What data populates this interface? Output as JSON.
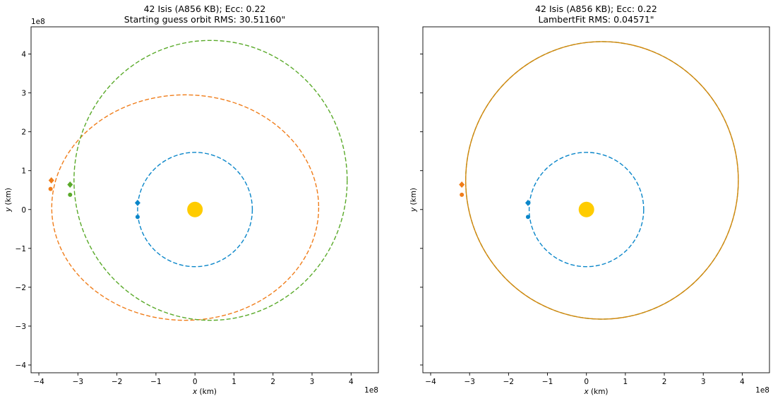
{
  "chart_data": [
    {
      "type": "scatter",
      "title_line1": "42 Isis (A856 KB); Ecc: 0.22",
      "title_line2": "Starting guess orbit RMS: 30.51160\"",
      "xlabel_var": "x",
      "xlabel_unit": " (km)",
      "ylabel_var": "y",
      "ylabel_unit": " (km)",
      "x_multiplier": "1e8",
      "y_multiplier": "1e8",
      "xlim": [
        -4.2,
        4.7
      ],
      "ylim": [
        -4.2,
        4.7
      ],
      "xticks": [
        -4,
        -3,
        -2,
        -1,
        0,
        1,
        2,
        3,
        4
      ],
      "yticks": [
        -4,
        -3,
        -2,
        -1,
        0,
        1,
        2,
        3,
        4
      ],
      "xtick_labels": [
        "−4",
        "−3",
        "−2",
        "−1",
        "0",
        "1",
        "2",
        "3",
        "4"
      ],
      "ytick_labels": [
        "−4",
        "−3",
        "−2",
        "−1",
        "0",
        "1",
        "2",
        "3",
        "4"
      ],
      "show_y_tick_labels": true,
      "sun": {
        "x": 0,
        "y": 0,
        "color": "#ffcc00"
      },
      "orbits": [
        {
          "cx": 0.0,
          "cy": 0.0,
          "rx": 1.47,
          "ry": 1.47,
          "color": "#0a86c9",
          "dash": "6,3"
        },
        {
          "cx": -0.25,
          "cy": 0.05,
          "rx": 3.42,
          "ry": 2.9,
          "color": "#f07d1a",
          "dash": "6,3"
        },
        {
          "cx": 0.4,
          "cy": 0.75,
          "rx": 3.5,
          "ry": 3.6,
          "color": "#5aaa2a",
          "dash": "6,3"
        }
      ],
      "markers": [
        {
          "x": -1.47,
          "y": 0.17,
          "shape": "diamond",
          "color": "#0a86c9"
        },
        {
          "x": -1.47,
          "y": -0.19,
          "shape": "circle",
          "color": "#0a86c9"
        },
        {
          "x": -3.68,
          "y": 0.75,
          "shape": "diamond",
          "color": "#f07d1a"
        },
        {
          "x": -3.7,
          "y": 0.53,
          "shape": "circle",
          "color": "#f07d1a"
        },
        {
          "x": -3.2,
          "y": 0.64,
          "shape": "diamond",
          "color": "#5aaa2a"
        },
        {
          "x": -3.2,
          "y": 0.38,
          "shape": "circle",
          "color": "#5aaa2a"
        }
      ]
    },
    {
      "type": "scatter",
      "title_line1": "42 Isis (A856 KB); Ecc: 0.22",
      "title_line2": "LambertFit RMS: 0.04571\"",
      "xlabel_var": "x",
      "xlabel_unit": " (km)",
      "ylabel_var": "y",
      "ylabel_unit": " (km)",
      "x_multiplier": "1e8",
      "y_multiplier": "",
      "xlim": [
        -4.2,
        4.7
      ],
      "ylim": [
        -4.2,
        4.7
      ],
      "xticks": [
        -4,
        -3,
        -2,
        -1,
        0,
        1,
        2,
        3,
        4
      ],
      "yticks": [
        -4,
        -3,
        -2,
        -1,
        0,
        1,
        2,
        3,
        4
      ],
      "xtick_labels": [
        "−4",
        "−3",
        "−2",
        "−1",
        "0",
        "1",
        "2",
        "3",
        "4"
      ],
      "ytick_labels": [],
      "show_y_tick_labels": false,
      "sun": {
        "x": 0,
        "y": 0,
        "color": "#ffcc00"
      },
      "orbits": [
        {
          "cx": 0.0,
          "cy": 0.0,
          "rx": 1.47,
          "ry": 1.47,
          "color": "#0a86c9",
          "dash": "6,3"
        },
        {
          "cx": 0.4,
          "cy": 0.75,
          "rx": 3.5,
          "ry": 3.57,
          "color": "#5aaa2a",
          "dash": "6,3"
        },
        {
          "cx": 0.4,
          "cy": 0.75,
          "rx": 3.5,
          "ry": 3.57,
          "color": "#d4870f",
          "dash": ""
        }
      ],
      "markers": [
        {
          "x": -1.5,
          "y": 0.17,
          "shape": "diamond",
          "color": "#0a86c9"
        },
        {
          "x": -1.5,
          "y": -0.19,
          "shape": "circle",
          "color": "#0a86c9"
        },
        {
          "x": -3.2,
          "y": 0.64,
          "shape": "diamond",
          "color": "#f07d1a"
        },
        {
          "x": -3.2,
          "y": 0.38,
          "shape": "circle",
          "color": "#f07d1a"
        }
      ]
    }
  ]
}
